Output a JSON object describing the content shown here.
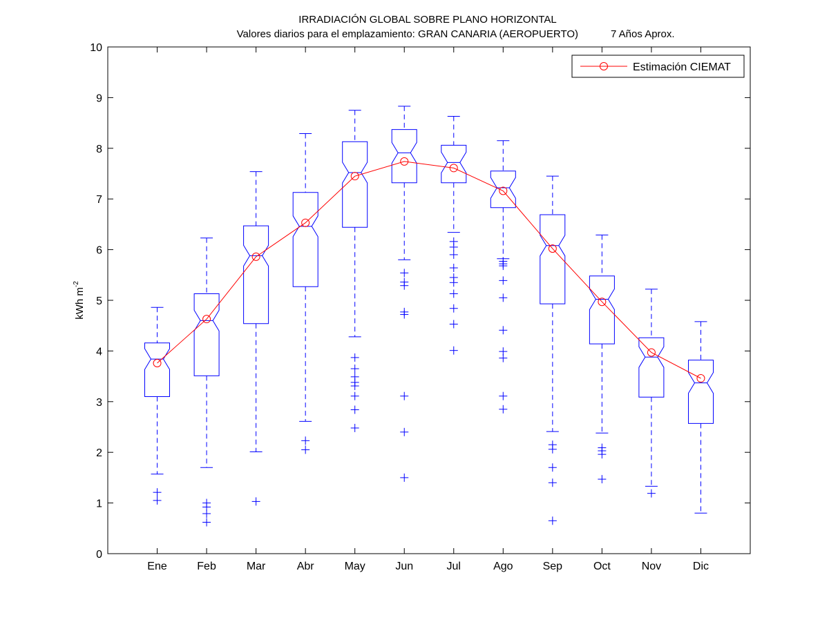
{
  "chart_data": {
    "type": "box",
    "title": "IRRADIACIÓN GLOBAL SOBRE PLANO HORIZONTAL",
    "subtitle_left": "Valores diarios para el emplazamiento:  GRAN CANARIA (AEROPUERTO)",
    "subtitle_right": "7 Años Aprox.",
    "ylabel_main": "kWh m",
    "ylabel_sup": "-2",
    "xlabel": "",
    "ylim": [
      0,
      10
    ],
    "yticks": [
      "0",
      "1",
      "2",
      "3",
      "4",
      "5",
      "6",
      "7",
      "8",
      "9",
      "10"
    ],
    "categories": [
      "Ene",
      "Feb",
      "Mar",
      "Abr",
      "May",
      "Jun",
      "Jul",
      "Ago",
      "Sep",
      "Oct",
      "Nov",
      "Dic"
    ],
    "boxes": [
      {
        "lower_whisker": 1.57,
        "q1": 3.1,
        "median": 3.84,
        "q3": 4.16,
        "upper_whisker": 4.86,
        "outliers": [
          1.05,
          1.21
        ]
      },
      {
        "lower_whisker": 1.7,
        "q1": 3.51,
        "median": 4.6,
        "q3": 5.13,
        "upper_whisker": 6.23,
        "outliers": [
          0.62,
          0.79,
          0.92,
          1.0
        ]
      },
      {
        "lower_whisker": 2.01,
        "q1": 4.54,
        "median": 5.88,
        "q3": 6.47,
        "upper_whisker": 7.54,
        "outliers": [
          1.03
        ]
      },
      {
        "lower_whisker": 2.61,
        "q1": 5.27,
        "median": 6.46,
        "q3": 7.13,
        "upper_whisker": 8.29,
        "outliers": [
          2.05,
          2.23
        ]
      },
      {
        "lower_whisker": 4.28,
        "q1": 6.44,
        "median": 7.52,
        "q3": 8.13,
        "upper_whisker": 8.75,
        "outliers": [
          2.48,
          2.84,
          3.11,
          3.31,
          3.38,
          3.49,
          3.65,
          3.87
        ]
      },
      {
        "lower_whisker": 5.8,
        "q1": 7.32,
        "median": 7.91,
        "q3": 8.37,
        "upper_whisker": 8.83,
        "outliers": [
          1.5,
          2.4,
          3.11,
          4.72,
          4.77,
          5.29,
          5.36,
          5.54
        ]
      },
      {
        "lower_whisker": 6.34,
        "q1": 7.32,
        "median": 7.72,
        "q3": 8.06,
        "upper_whisker": 8.63,
        "outliers": [
          4.01,
          4.53,
          4.84,
          5.13,
          5.35,
          5.45,
          5.64,
          5.9,
          6.05,
          6.16
        ]
      },
      {
        "lower_whisker": 5.82,
        "q1": 6.83,
        "median": 7.22,
        "q3": 7.55,
        "upper_whisker": 8.15,
        "outliers": [
          2.85,
          3.11,
          3.86,
          3.99,
          4.41,
          5.05,
          5.39,
          5.68,
          5.72,
          5.77
        ]
      },
      {
        "lower_whisker": 2.41,
        "q1": 4.93,
        "median": 6.08,
        "q3": 6.69,
        "upper_whisker": 7.45,
        "outliers": [
          0.65,
          1.4,
          1.7,
          2.06,
          2.15
        ]
      },
      {
        "lower_whisker": 2.38,
        "q1": 4.14,
        "median": 5.02,
        "q3": 5.48,
        "upper_whisker": 6.29,
        "outliers": [
          1.47,
          1.96,
          2.03,
          2.09
        ]
      },
      {
        "lower_whisker": 1.33,
        "q1": 3.09,
        "median": 3.88,
        "q3": 4.26,
        "upper_whisker": 5.22,
        "outliers": [
          1.19
        ]
      },
      {
        "lower_whisker": 0.8,
        "q1": 2.57,
        "median": 3.37,
        "q3": 3.82,
        "upper_whisker": 4.58,
        "outliers": []
      }
    ],
    "series": [
      {
        "name": "Estimación CIEMAT",
        "values": [
          3.76,
          4.63,
          5.86,
          6.53,
          7.45,
          7.74,
          7.61,
          7.16,
          6.02,
          4.97,
          3.97,
          3.46
        ]
      }
    ],
    "legend_position": "top-right",
    "grid": false,
    "colors": {
      "box": "#0000ff",
      "series": "#ff0000",
      "axis": "#000000"
    }
  }
}
